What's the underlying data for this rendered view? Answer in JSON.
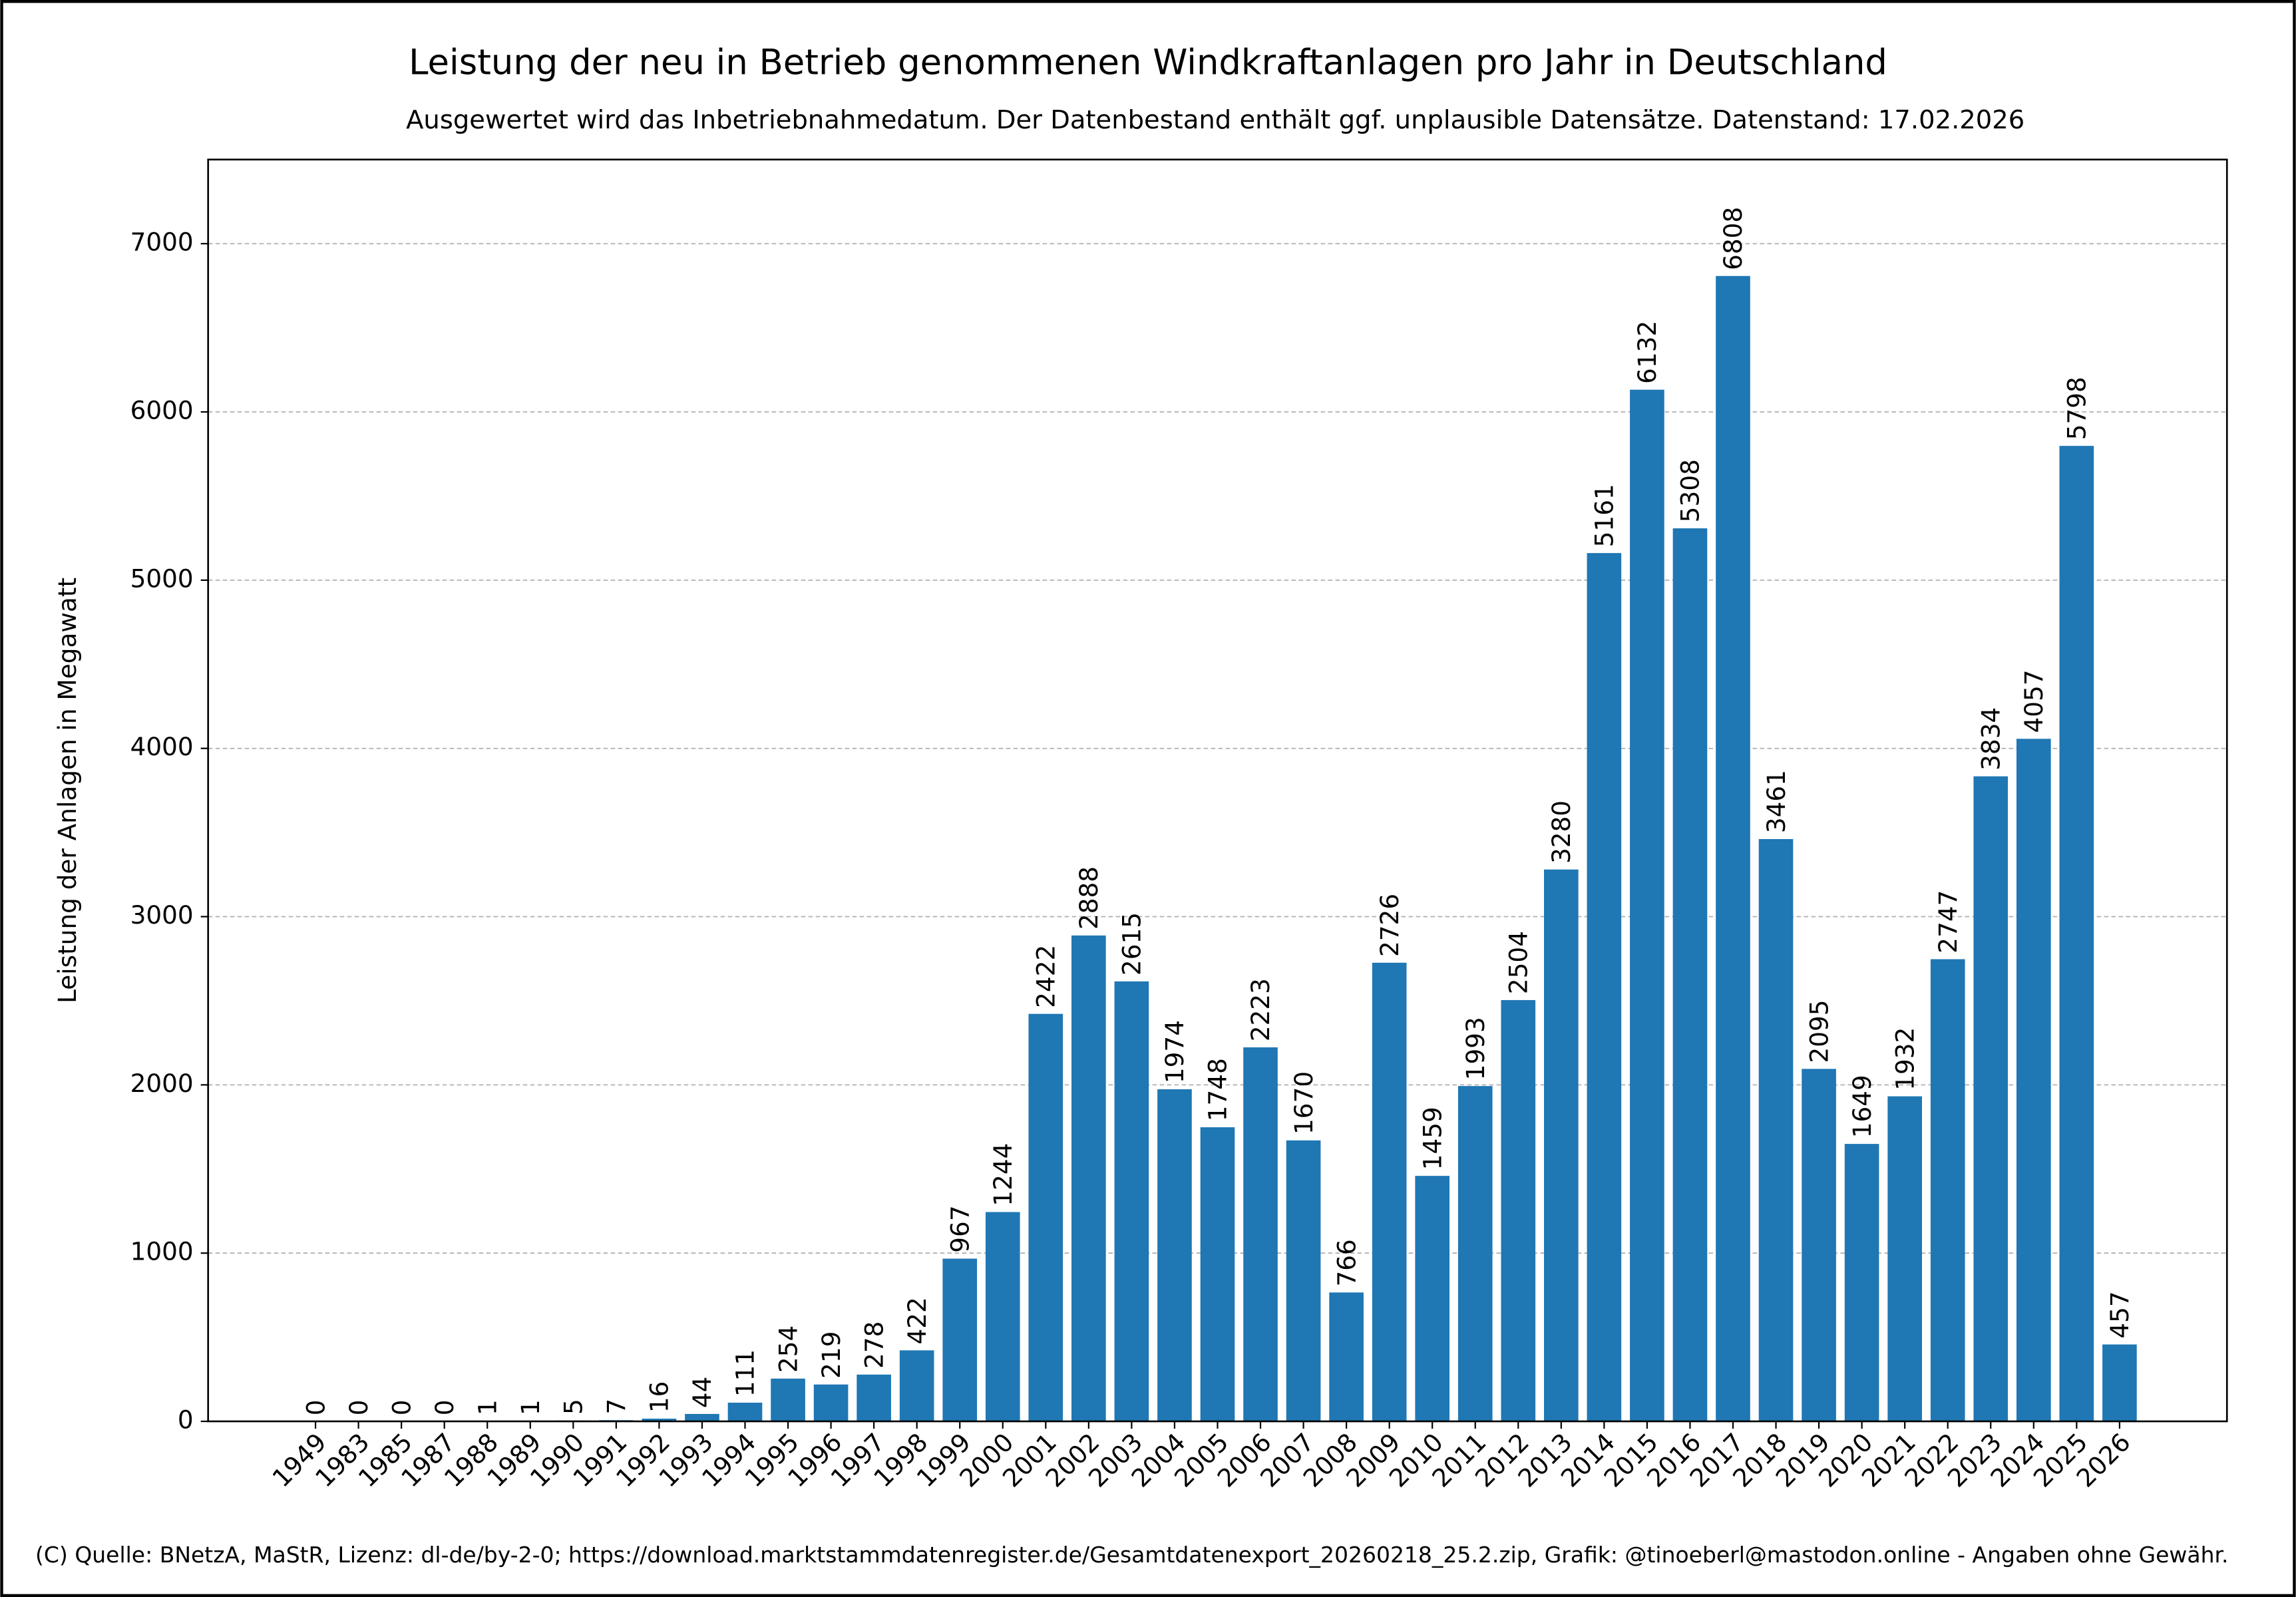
{
  "chart_data": {
    "type": "bar",
    "title": "Leistung der neu in Betrieb genommenen Windkraftanlagen pro Jahr in Deutschland",
    "subtitle": "Ausgewertet wird das Inbetriebnahmedatum. Der Datenbestand enthält ggf. unplausible Datensätze. Datenstand: 17.02.2026",
    "y_label": "Leistung der Anlagen in Megawatt",
    "footer": "(C) Quelle: BNetzA, MaStR, Lizenz: dl-de/by-2-0; https://download.marktstammdatenregister.de/Gesamtdatenexport_20260218_25.2.zip, Grafik: @tinoeberl@mastodon.online - Angaben ohne Gewähr.",
    "categories": [
      "1949",
      "1983",
      "1985",
      "1987",
      "1988",
      "1989",
      "1990",
      "1991",
      "1992",
      "1993",
      "1994",
      "1995",
      "1996",
      "1997",
      "1998",
      "1999",
      "2000",
      "2001",
      "2002",
      "2003",
      "2004",
      "2005",
      "2006",
      "2007",
      "2008",
      "2009",
      "2010",
      "2011",
      "2012",
      "2013",
      "2014",
      "2015",
      "2016",
      "2017",
      "2018",
      "2019",
      "2020",
      "2021",
      "2022",
      "2023",
      "2024",
      "2025",
      "2026"
    ],
    "values": [
      0,
      0,
      0,
      0,
      1,
      1,
      5,
      7,
      16,
      44,
      111,
      254,
      219,
      278,
      422,
      967,
      1244,
      2422,
      2888,
      2615,
      1974,
      1748,
      2223,
      1670,
      766,
      2726,
      1459,
      1993,
      2504,
      3280,
      5161,
      6132,
      5308,
      6808,
      3461,
      2095,
      1649,
      1932,
      2747,
      3834,
      4057,
      5798,
      457
    ],
    "color": "#1f77b4",
    "ylim": [
      0,
      7500
    ],
    "yticks": [
      0,
      1000,
      2000,
      3000,
      4000,
      5000,
      6000,
      7000
    ],
    "grid": true
  }
}
